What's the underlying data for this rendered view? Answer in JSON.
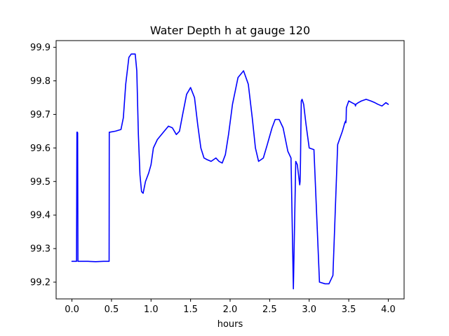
{
  "chart_data": {
    "type": "line",
    "title": "Water Depth h at gauge 120",
    "xlabel": "hours",
    "ylabel": "",
    "xlim": [
      -0.2,
      4.2
    ],
    "ylim": [
      99.15,
      99.92
    ],
    "x_ticks": [
      0.0,
      0.5,
      1.0,
      1.5,
      2.0,
      2.5,
      3.0,
      3.5,
      4.0
    ],
    "x_tick_labels": [
      "0.0",
      "0.5",
      "1.0",
      "1.5",
      "2.0",
      "2.5",
      "3.0",
      "3.5",
      "4.0"
    ],
    "y_ticks": [
      99.2,
      99.3,
      99.4,
      99.5,
      99.6,
      99.7,
      99.8,
      99.9
    ],
    "y_tick_labels": [
      "99.2",
      "99.3",
      "99.4",
      "99.5",
      "99.6",
      "99.7",
      "99.8",
      "99.9"
    ],
    "grid": false,
    "legend": "none",
    "series": [
      {
        "color": "#0000ff",
        "x": [
          0.0,
          0.055,
          0.058,
          0.063,
          0.068,
          0.072,
          0.076,
          0.08,
          0.2,
          0.3,
          0.4,
          0.47,
          0.472,
          0.48,
          0.55,
          0.62,
          0.65,
          0.68,
          0.72,
          0.75,
          0.8,
          0.82,
          0.84,
          0.86,
          0.88,
          0.9,
          0.93,
          0.97,
          1.0,
          1.03,
          1.08,
          1.15,
          1.22,
          1.27,
          1.32,
          1.36,
          1.4,
          1.45,
          1.5,
          1.55,
          1.59,
          1.63,
          1.67,
          1.71,
          1.76,
          1.82,
          1.86,
          1.9,
          1.94,
          1.98,
          2.03,
          2.1,
          2.17,
          2.23,
          2.28,
          2.32,
          2.36,
          2.42,
          2.47,
          2.53,
          2.57,
          2.62,
          2.67,
          2.73,
          2.77,
          2.8,
          2.83,
          2.85,
          2.87,
          2.88,
          2.885,
          2.89,
          2.895,
          2.9,
          2.91,
          2.93,
          2.96,
          3.0,
          3.06,
          3.13,
          3.2,
          3.25,
          3.3,
          3.36,
          3.42,
          3.45,
          3.46,
          3.463,
          3.467,
          3.47,
          3.5,
          3.54,
          3.58,
          3.585,
          3.59,
          3.62,
          3.66,
          3.72,
          3.78,
          3.83,
          3.87,
          3.92,
          3.97,
          4.0
        ],
        "y": [
          99.262,
          99.262,
          99.262,
          99.647,
          99.647,
          99.645,
          99.262,
          99.262,
          99.262,
          99.261,
          99.262,
          99.262,
          99.647,
          99.647,
          99.65,
          99.655,
          99.69,
          99.79,
          99.87,
          99.88,
          99.88,
          99.83,
          99.64,
          99.52,
          99.47,
          99.465,
          99.5,
          99.525,
          99.55,
          99.6,
          99.625,
          99.645,
          99.665,
          99.66,
          99.64,
          99.65,
          99.7,
          99.76,
          99.78,
          99.75,
          99.67,
          99.6,
          99.57,
          99.565,
          99.56,
          99.57,
          99.56,
          99.555,
          99.58,
          99.64,
          99.73,
          99.81,
          99.83,
          99.79,
          99.69,
          99.6,
          99.56,
          99.57,
          99.61,
          99.66,
          99.685,
          99.685,
          99.66,
          99.59,
          99.57,
          99.18,
          99.56,
          99.55,
          99.51,
          99.49,
          99.5,
          99.56,
          99.66,
          99.74,
          99.745,
          99.73,
          99.67,
          99.6,
          99.595,
          99.2,
          99.195,
          99.195,
          99.22,
          99.61,
          99.65,
          99.675,
          99.68,
          99.675,
          99.685,
          99.72,
          99.74,
          99.735,
          99.73,
          99.725,
          99.73,
          99.735,
          99.74,
          99.745,
          99.74,
          99.735,
          99.73,
          99.725,
          99.735,
          99.73
        ]
      }
    ]
  }
}
